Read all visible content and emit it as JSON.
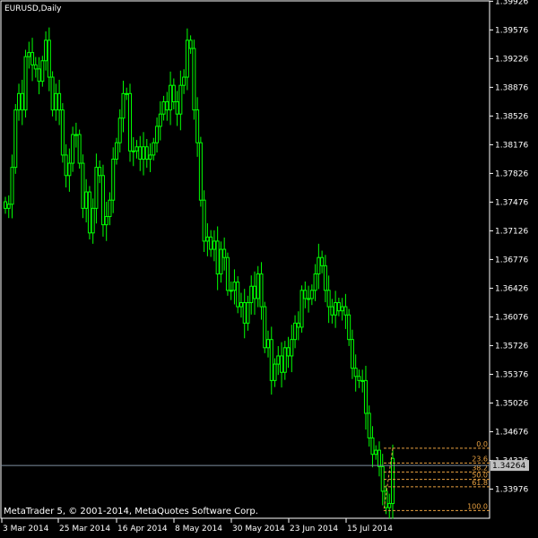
{
  "symbol_label": "EURUSD,Daily",
  "watermark": "MetaTrader 5, © 2001-2014, MetaQuotes Software Corp.",
  "colors": {
    "background": "#000000",
    "candle": "#00ff00",
    "axis": "#ffffff",
    "fibonacci": "#e8a040",
    "current_price_line": "#8090a0",
    "price_tag_bg": "#c0c0c0",
    "price_tag_text": "#000000"
  },
  "current_price": "1.34264",
  "chart_data": {
    "type": "candlestick",
    "title": "EURUSD,Daily",
    "y_ticks": [
      "1.39926",
      "1.39576",
      "1.39226",
      "1.38876",
      "1.38526",
      "1.38176",
      "1.37826",
      "1.37476",
      "1.37126",
      "1.36776",
      "1.36426",
      "1.36076",
      "1.35726",
      "1.35376",
      "1.35026",
      "1.34676",
      "1.34326",
      "1.33976"
    ],
    "x_ticks": [
      "3 Mar 2014",
      "25 Mar 2014",
      "16 Apr 2014",
      "8 May 2014",
      "30 May 2014",
      "23 Jun 2014",
      "15 Jul 2014"
    ],
    "ylim": [
      1.3362,
      1.3993
    ],
    "closes": [
      1.374,
      1.3745,
      1.379,
      1.386,
      1.388,
      1.386,
      1.3925,
      1.393,
      1.3915,
      1.391,
      1.3895,
      1.392,
      1.3945,
      1.39,
      1.386,
      1.388,
      1.386,
      1.3805,
      1.378,
      1.3795,
      1.383,
      1.383,
      1.3795,
      1.374,
      1.376,
      1.371,
      1.374,
      1.379,
      1.378,
      1.372,
      1.373,
      1.375,
      1.38,
      1.382,
      1.385,
      1.388,
      1.388,
      1.381,
      1.381,
      1.3815,
      1.38,
      1.3815,
      1.38,
      1.3805,
      1.382,
      1.384,
      1.3855,
      1.387,
      1.386,
      1.389,
      1.387,
      1.3855,
      1.389,
      1.39,
      1.3945,
      1.3935,
      1.386,
      1.382,
      1.375,
      1.37,
      1.3705,
      1.369,
      1.37,
      1.366,
      1.369,
      1.368,
      1.364,
      1.364,
      1.365,
      1.362,
      1.3625,
      1.36,
      1.3625,
      1.3645,
      1.363,
      1.366,
      1.362,
      1.357,
      1.358,
      1.353,
      1.355,
      1.356,
      1.354,
      1.357,
      1.356,
      1.358,
      1.36,
      1.3595,
      1.364,
      1.363,
      1.363,
      1.364,
      1.366,
      1.368,
      1.367,
      1.364,
      1.362,
      1.361,
      1.3625,
      1.3615,
      1.362,
      1.361,
      1.358,
      1.3545,
      1.3535,
      1.353,
      1.353,
      1.349,
      1.346,
      1.344,
      1.3445,
      1.3425,
      1.3395,
      1.3375,
      1.338,
      1.3435
    ]
  },
  "fibonacci_levels": [
    {
      "label": "0.0",
      "price": 1.34474
    },
    {
      "label": "23.6",
      "price": 1.34294
    },
    {
      "label": "38.2",
      "price": 1.34184
    },
    {
      "label": "50.0",
      "price": 1.34094
    },
    {
      "label": "61.8",
      "price": 1.34004
    },
    {
      "label": "100.0",
      "price": 1.33714
    }
  ]
}
